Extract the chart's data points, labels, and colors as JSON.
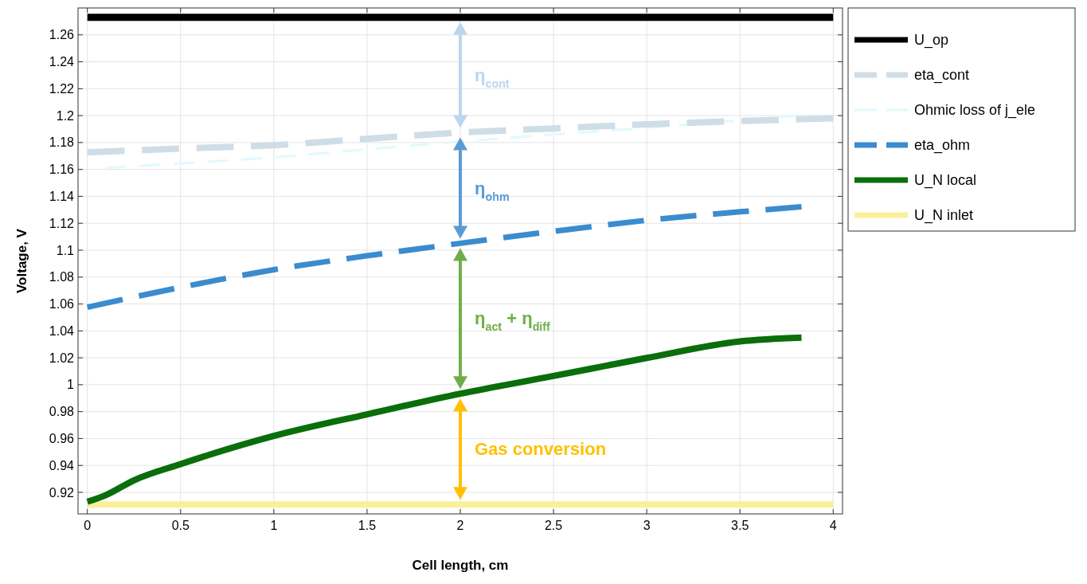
{
  "chart_data": {
    "type": "line",
    "xlabel": "Cell length, cm",
    "ylabel": "Voltage, V",
    "xlim": [
      -0.05,
      4.05
    ],
    "ylim": [
      0.904,
      1.28
    ],
    "xticks": [
      0,
      0.5,
      1,
      1.5,
      2,
      2.5,
      3,
      3.5,
      4
    ],
    "yticks": [
      0.92,
      0.94,
      0.96,
      0.98,
      1,
      1.02,
      1.04,
      1.06,
      1.08,
      1.1,
      1.12,
      1.14,
      1.16,
      1.18,
      1.2,
      1.22,
      1.24,
      1.26
    ],
    "grid": true,
    "legend": "right",
    "series": [
      {
        "name": "U_op",
        "color": "#000000",
        "line_style": "solid",
        "x": [
          0,
          4
        ],
        "values": [
          1.273,
          1.273
        ]
      },
      {
        "name": "eta_cont",
        "color": "#cfdde6",
        "line_style": "dashed",
        "x": [
          0,
          0.5,
          1,
          1.5,
          2,
          2.5,
          3,
          3.5,
          4
        ],
        "values": [
          1.1727,
          1.1755,
          1.178,
          1.1828,
          1.1874,
          1.1905,
          1.1935,
          1.196,
          1.198
        ]
      },
      {
        "name": "Ohmic loss of j_ele",
        "color": "#e0fafc",
        "line_style": "dashed",
        "x": [
          0.1,
          0.5,
          1,
          1.5,
          2,
          2.5,
          3,
          3.5,
          3.83
        ],
        "values": [
          1.1612,
          1.1645,
          1.169,
          1.175,
          1.1806,
          1.186,
          1.191,
          1.1965,
          1.2002
        ]
      },
      {
        "name": "eta_ohm",
        "color": "#3a8ccf",
        "line_style": "dashed",
        "x": [
          0,
          0.5,
          1,
          1.5,
          2,
          2.5,
          3,
          3.5,
          3.83
        ],
        "values": [
          1.0576,
          1.0724,
          1.0855,
          1.0958,
          1.1051,
          1.114,
          1.1222,
          1.1285,
          1.1323
        ]
      },
      {
        "name": "U_N local",
        "color": "#0a6e0a",
        "line_style": "solid",
        "x": [
          0,
          0.1,
          0.25,
          0.5,
          1,
          1.5,
          2,
          2.5,
          3,
          3.5,
          3.83
        ],
        "values": [
          0.913,
          0.918,
          0.929,
          0.941,
          0.9619,
          0.978,
          0.9933,
          1.0065,
          1.0199,
          1.0322,
          1.035
        ]
      },
      {
        "name": "U_N inlet",
        "color": "#fbf09a",
        "line_style": "solid",
        "x": [
          0,
          4
        ],
        "values": [
          0.911,
          0.911
        ]
      }
    ],
    "annotations": [
      "η$_{cont}$",
      "η$_{ohm}$",
      "η$_{act}$ + η$_{diff}$",
      "Gas conversion"
    ]
  }
}
